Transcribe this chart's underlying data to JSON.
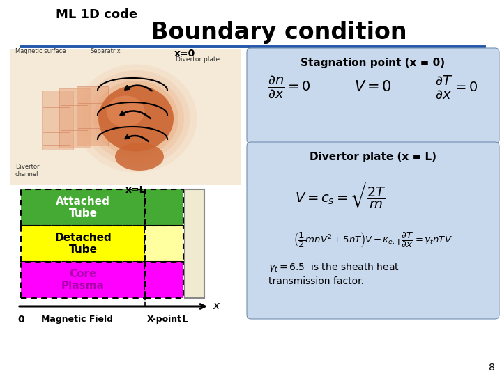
{
  "title": "Boundary condition",
  "subtitle": "ML 1D code",
  "bg_color": "#ffffff",
  "title_color": "#000000",
  "title_fontsize": 24,
  "subtitle_fontsize": 13,
  "line_color": "#2255aa",
  "stag_box_color": "#c8d8ed",
  "div_box_color": "#c8d8ed",
  "stag_title": "Stagnation point (x = 0)",
  "div_title": "Divertor plate (x = L)",
  "page_number": "8",
  "bar_labels": [
    "Attached\nTube",
    "Detached\nTube",
    "Core\nPlasma"
  ],
  "bar_colors": [
    "#44aa33",
    "#ffff00",
    "#ff00ff"
  ],
  "bar_text_colors": [
    "#ffffff",
    "#000000",
    "#aa00aa"
  ],
  "x0_label": "x=0",
  "xL_label": "x=L",
  "img_bg": "#f5ead8",
  "img_body_color": "#cc6633",
  "img_body_light": "#e8a070"
}
